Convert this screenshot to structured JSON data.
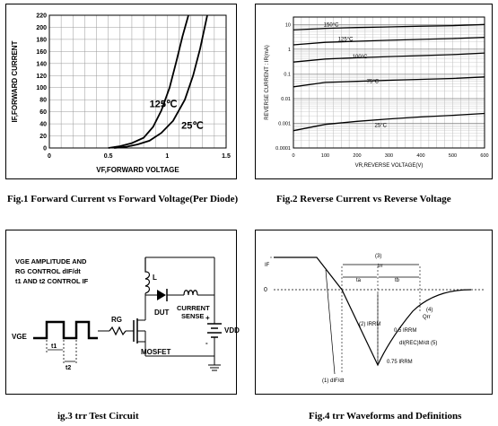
{
  "captions": {
    "fig1": "Fig.1  Forward Current vs Forward Voltage(Per Diode)",
    "fig2": "Fig.2  Reverse Current vs Reverse Voltage",
    "fig3": "ig.3  trr Test Circuit",
    "fig4": "Fig.4 trr Waveforms and Definitions"
  },
  "chart_data": [
    {
      "type": "line",
      "title": "",
      "xlabel": "VF,FORWARD VOLTAGE",
      "ylabel": "IF,FORWARD CURRENT",
      "xlim": [
        0,
        1.5
      ],
      "ylim": [
        0,
        220
      ],
      "x_ticks": [
        "0",
        "0.5",
        "1",
        "1.5"
      ],
      "y_ticks": [
        "0",
        "20",
        "40",
        "60",
        "80",
        "100",
        "120",
        "140",
        "160",
        "180",
        "200",
        "220"
      ],
      "grid": true,
      "annotations": [
        "125℃",
        "25℃"
      ],
      "series": [
        {
          "name": "125℃",
          "x": [
            0.5,
            0.6,
            0.7,
            0.8,
            0.88,
            0.95,
            1.02,
            1.08,
            1.13,
            1.18
          ],
          "y": [
            0,
            3,
            8,
            17,
            35,
            62,
            100,
            145,
            185,
            220
          ]
        },
        {
          "name": "25℃",
          "x": [
            0.55,
            0.65,
            0.75,
            0.85,
            0.95,
            1.05,
            1.15,
            1.22,
            1.28,
            1.34
          ],
          "y": [
            0,
            2,
            6,
            12,
            25,
            45,
            80,
            120,
            165,
            220
          ]
        }
      ]
    },
    {
      "type": "line",
      "title": "",
      "xlabel": "VR,REVERSE VOLTAGE(V)",
      "ylabel": "REVERSE CURRENT : IR(mA)",
      "xlim": [
        0,
        600
      ],
      "ylim": [
        0.0001,
        20
      ],
      "yscale": "log",
      "x_ticks": [
        "0",
        "100",
        "200",
        "300",
        "400",
        "500",
        "600"
      ],
      "y_ticks": [
        "0.0001",
        "0.001",
        "0.01",
        "0.1",
        "1",
        "10"
      ],
      "grid": true,
      "series": [
        {
          "name": "150°C",
          "x": [
            0,
            100,
            200,
            300,
            400,
            500,
            600
          ],
          "y": [
            6,
            7,
            7.5,
            8,
            8.5,
            9,
            10
          ]
        },
        {
          "name": "125°C",
          "x": [
            0,
            100,
            200,
            300,
            400,
            500,
            600
          ],
          "y": [
            1.5,
            1.9,
            2.1,
            2.3,
            2.5,
            2.7,
            3
          ]
        },
        {
          "name": "100°C",
          "x": [
            0,
            100,
            200,
            300,
            400,
            500,
            600
          ],
          "y": [
            0.3,
            0.4,
            0.45,
            0.5,
            0.55,
            0.6,
            0.7
          ]
        },
        {
          "name": "75°C",
          "x": [
            0,
            100,
            200,
            300,
            400,
            500,
            600
          ],
          "y": [
            0.03,
            0.045,
            0.05,
            0.055,
            0.06,
            0.065,
            0.075
          ]
        },
        {
          "name": "25°C",
          "x": [
            0,
            100,
            200,
            300,
            400,
            500,
            600
          ],
          "y": [
            0.0005,
            0.0009,
            0.0012,
            0.0015,
            0.0018,
            0.0021,
            0.0025
          ]
        }
      ]
    }
  ],
  "circuit": {
    "line1": "VGE AMPLITUDE AND",
    "line2": "RG CONTROL dIF/dt",
    "line3": "t1 AND t2 CONTROL IF",
    "vge": "VGE",
    "rg": "RG",
    "l": "L",
    "dut": "DUT",
    "current": "CURRENT",
    "sense": "SENSE",
    "mosfet": "MOSFET",
    "vdd": "VDD",
    "t1": "t1",
    "t2": "t2",
    "plus": "+",
    "minus": "-"
  },
  "waveform": {
    "if": "IF",
    "zero": "0",
    "n3": "(3)",
    "trr": "trr",
    "ta": "ta",
    "tb": "tb",
    "n2": "(2) IRRM",
    "n4": "(4)",
    "qrr": "Qrr",
    "half": "0.5 IRRM",
    "dirr": "dI(REC)M/dt (5)",
    "p75": "0.75 IRRM",
    "n1": "(1) dIF/dt"
  }
}
